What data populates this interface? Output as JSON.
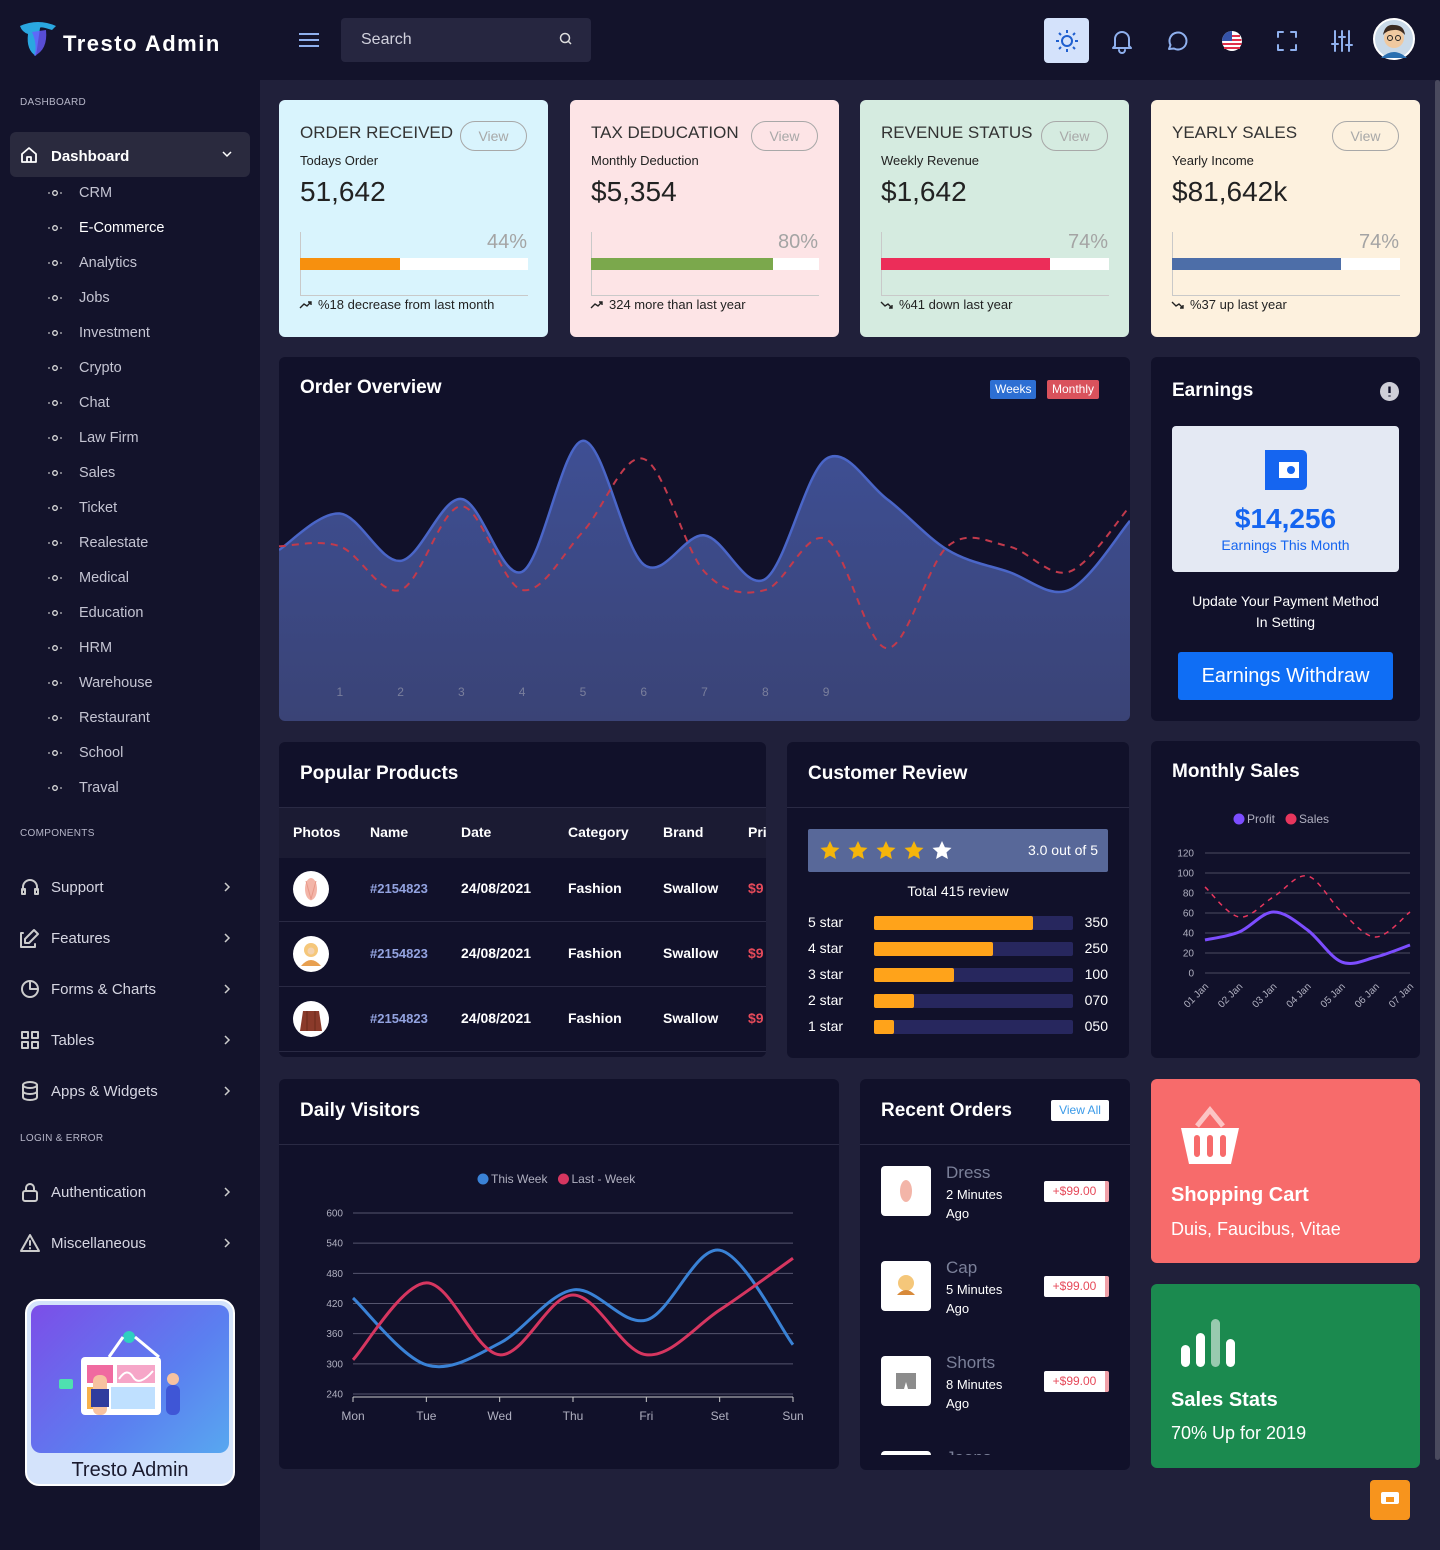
{
  "header": {
    "brand": "Tresto Admin",
    "search_placeholder": "Search"
  },
  "sidebar": {
    "sections": [
      {
        "title": "DASHBOARD",
        "items": [
          {
            "label": "Dashboard",
            "children": [
              "CRM",
              "E-Commerce",
              "Analytics",
              "Jobs",
              "Investment",
              "Crypto",
              "Chat",
              "Law Firm",
              "Sales",
              "Ticket",
              "Realestate",
              "Medical",
              "Education",
              "HRM",
              "Warehouse",
              "Restaurant",
              "School",
              "Traval"
            ]
          }
        ]
      },
      {
        "title": "COMPONENTS",
        "items": [
          {
            "label": "Support"
          },
          {
            "label": "Features"
          },
          {
            "label": "Forms & Charts"
          },
          {
            "label": "Tables"
          },
          {
            "label": "Apps & Widgets"
          }
        ]
      },
      {
        "title": "LOGIN & ERROR",
        "items": [
          {
            "label": "Authentication"
          },
          {
            "label": "Miscellaneous"
          }
        ]
      }
    ],
    "promo": "Tresto Admin"
  },
  "stat_cards": [
    {
      "title": "ORDER RECEIVED",
      "button": "View",
      "subtitle": "Todays Order",
      "value": "51,642",
      "progress": 44,
      "progress_label": "44%",
      "note": "%18 decrease from last month",
      "color": "#d9f4fd",
      "bar_color": "#f7900e"
    },
    {
      "title": "TAX DEDUCATION",
      "button": "View",
      "subtitle": "Monthly Deduction",
      "value": "$5,354",
      "progress": 80,
      "progress_label": "80%",
      "note": "324 more than last year",
      "color": "#fde4e6",
      "bar_color": "#7ba84c"
    },
    {
      "title": "REVENUE STATUS",
      "button": "View",
      "subtitle": "Weekly Revenue",
      "value": "$1,642",
      "progress": 74,
      "progress_label": "74%",
      "note": "%41 down last year",
      "color": "#d5ebe0",
      "bar_color": "#ec2d59"
    },
    {
      "title": "YEARLY SALES",
      "button": "View",
      "subtitle": "Yearly Income",
      "value": "$81,642k",
      "progress": 74,
      "progress_label": "74%",
      "note": "%37 up last year",
      "color": "#fdf1de",
      "bar_color": "#4d6ea8"
    }
  ],
  "chart_data": [
    {
      "type": "area",
      "title": "Order Overview",
      "buttons": [
        "Weeks",
        "Monthly"
      ],
      "x": [
        0,
        1,
        2,
        3,
        4,
        5,
        6,
        7,
        8,
        9,
        10,
        11,
        12,
        13,
        14
      ],
      "xlim": [
        0,
        14
      ],
      "xticks": [
        1,
        2,
        3,
        4,
        5,
        6,
        7,
        8,
        9
      ],
      "ylim": [
        0,
        100
      ],
      "series": [
        {
          "color": "#4a66c8",
          "fill": true,
          "values": [
            47,
            57,
            44,
            61,
            41,
            77,
            43,
            51,
            39,
            72,
            61,
            47,
            41,
            36,
            55
          ]
        },
        {
          "color": "#c23a4c",
          "dashed": true,
          "values": [
            48,
            48,
            36,
            59,
            36,
            52,
            72,
            41,
            36,
            50,
            20,
            48,
            48,
            41,
            59
          ]
        }
      ]
    },
    {
      "type": "line",
      "title": "Monthly Sales",
      "categories": [
        "01 Jan",
        "02 Jan",
        "03 Jan",
        "04 Jan",
        "05 Jan",
        "06 Jan",
        "07 Jan"
      ],
      "ylim": [
        0,
        120
      ],
      "yticks": [
        0,
        20,
        40,
        60,
        80,
        100,
        120
      ],
      "grid": true,
      "legend": "top",
      "series": [
        {
          "name": "Profit",
          "color": "#7c4dff",
          "values": [
            33,
            41,
            61,
            43,
            11,
            16,
            28
          ]
        },
        {
          "name": "Sales",
          "color": "#e8365d",
          "dashed": true,
          "values": [
            86,
            56,
            76,
            97,
            61,
            36,
            61
          ]
        }
      ]
    },
    {
      "type": "line",
      "title": "Daily Visitors",
      "categories": [
        "Mon",
        "Tue",
        "Wed",
        "Thu",
        "Fri",
        "Set",
        "Sun"
      ],
      "ylim": [
        240,
        600
      ],
      "yticks": [
        240,
        300,
        360,
        420,
        480,
        540,
        600
      ],
      "grid": true,
      "legend": "top",
      "series": [
        {
          "name": "This Week",
          "color": "#3a82d6",
          "values": [
            431,
            298,
            341,
            447,
            387,
            526,
            338
          ]
        },
        {
          "name": "Last - Week",
          "color": "#d63660",
          "values": [
            308,
            461,
            318,
            437,
            318,
            407,
            510
          ]
        }
      ]
    }
  ],
  "earnings": {
    "title": "Earnings",
    "amount": "$14,256",
    "amount_caption": "Earnings This Month",
    "text": "Update Your Payment Method In Setting",
    "button": "Earnings Withdraw"
  },
  "popular_products": {
    "title": "Popular Products",
    "headers": [
      "Photos",
      "Name",
      "Date",
      "Category",
      "Brand",
      "Pri"
    ],
    "rows": [
      {
        "id": "#2154823",
        "date": "24/08/2021",
        "category": "Fashion",
        "brand": "Swallow",
        "price": "$9"
      },
      {
        "id": "#2154823",
        "date": "24/08/2021",
        "category": "Fashion",
        "brand": "Swallow",
        "price": "$9"
      },
      {
        "id": "#2154823",
        "date": "24/08/2021",
        "category": "Fashion",
        "brand": "Swallow",
        "price": "$9"
      }
    ]
  },
  "customer_review": {
    "title": "Customer Review",
    "rating": "3.0 out of 5",
    "total": "Total 415 review",
    "rows": [
      {
        "label": "5 star",
        "count": "350",
        "percent": 80
      },
      {
        "label": "4 star",
        "count": "250",
        "percent": 60
      },
      {
        "label": "3 star",
        "count": "100",
        "percent": 40
      },
      {
        "label": "2 star",
        "count": "070",
        "percent": 20
      },
      {
        "label": "1 star",
        "count": "050",
        "percent": 10
      }
    ]
  },
  "recent_orders": {
    "title": "Recent Orders",
    "button": "View All",
    "items": [
      {
        "name": "Dress",
        "time": "2 Minutes Ago",
        "price": "+$99.00"
      },
      {
        "name": "Cap",
        "time": "5 Minutes Ago",
        "price": "+$99.00"
      },
      {
        "name": "Shorts",
        "time": "8 Minutes Ago",
        "price": "+$99.00"
      },
      {
        "name": "Jeans",
        "time": "",
        "price": ""
      }
    ]
  },
  "shopping_cart": {
    "title": "Shopping Cart",
    "text": "Duis, Faucibus, Vitae"
  },
  "sales_stats": {
    "title": "Sales Stats",
    "text": "70% Up for 2019"
  }
}
